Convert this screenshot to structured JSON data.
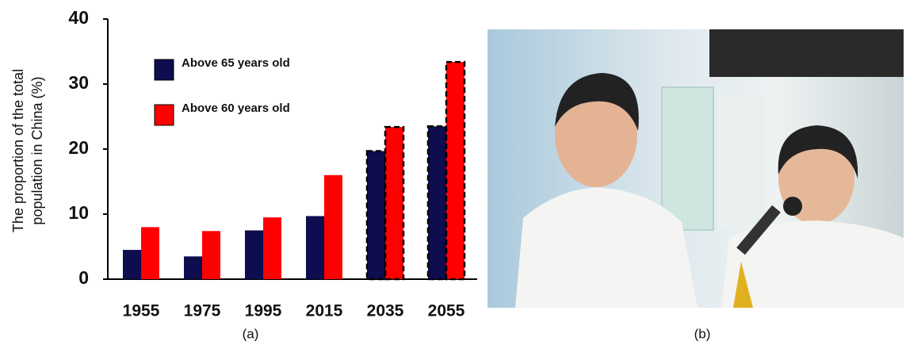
{
  "chart_data": {
    "type": "bar",
    "ylabel": [
      "The proportion of the total",
      "population in China (%)"
    ],
    "categories": [
      "1955",
      "1975",
      "1995",
      "2015",
      "2035",
      "2055"
    ],
    "series": [
      {
        "name": "Above 65 years old",
        "color": "#0d0d4f",
        "values": [
          4.5,
          3.5,
          7.5,
          9.7,
          19.7,
          23.5
        ]
      },
      {
        "name": "Above 60 years old",
        "color": "#ff0000",
        "values": [
          8,
          7.4,
          9.5,
          16,
          23.4,
          33.4
        ]
      }
    ],
    "dashed_outline": [
      false,
      false,
      false,
      false,
      true,
      true
    ],
    "ylim": [
      0,
      40
    ],
    "yticks": [
      0,
      10,
      20,
      30,
      40
    ],
    "grid": false
  },
  "captions": {
    "left": "(a)",
    "right": "(b)"
  }
}
